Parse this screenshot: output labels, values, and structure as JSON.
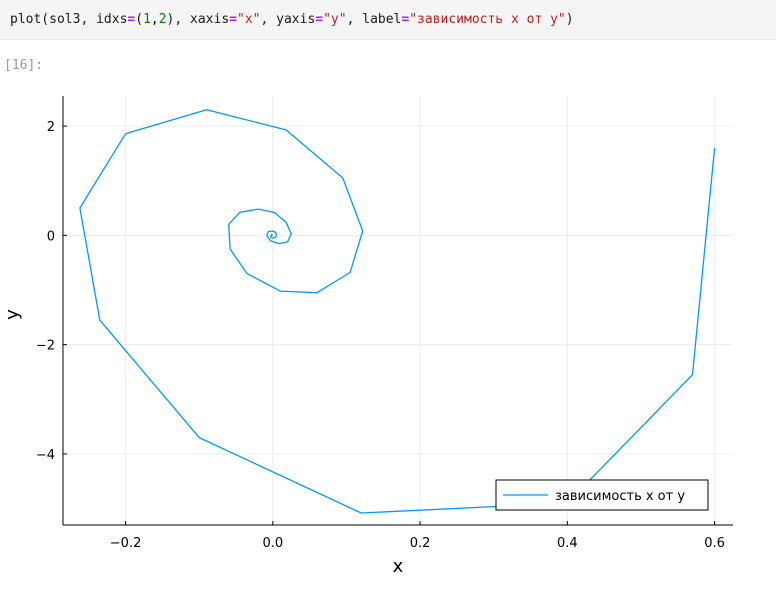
{
  "cell": {
    "code_tokens": [
      {
        "t": "plot(sol3, idxs",
        "c": ""
      },
      {
        "t": "=",
        "c": "tok-op"
      },
      {
        "t": "(",
        "c": ""
      },
      {
        "t": "1",
        "c": "tok-num"
      },
      {
        "t": ",",
        "c": ""
      },
      {
        "t": "2",
        "c": "tok-num"
      },
      {
        "t": "), xaxis",
        "c": ""
      },
      {
        "t": "=",
        "c": "tok-op"
      },
      {
        "t": "\"x\"",
        "c": "tok-str"
      },
      {
        "t": ", yaxis",
        "c": ""
      },
      {
        "t": "=",
        "c": "tok-op"
      },
      {
        "t": "\"y\"",
        "c": "tok-str"
      },
      {
        "t": ", label",
        "c": ""
      },
      {
        "t": "=",
        "c": "tok-op"
      },
      {
        "t": "\"зависимость x от y\"",
        "c": "tok-str"
      },
      {
        "t": ")",
        "c": ""
      }
    ],
    "output_prompt": "[16]:"
  },
  "chart_data": {
    "type": "line",
    "title": "",
    "xlabel": "x",
    "ylabel": "y",
    "xlim": [
      -0.285,
      0.625
    ],
    "ylim": [
      -5.3,
      2.55
    ],
    "xticks": [
      -0.2,
      0.0,
      0.2,
      0.4,
      0.6
    ],
    "xtick_labels": [
      "−0.2",
      "0.0",
      "0.2",
      "0.4",
      "0.6"
    ],
    "yticks": [
      2,
      0,
      -2,
      -4
    ],
    "ytick_labels": [
      "2",
      "0",
      "−2",
      "−4"
    ],
    "grid": true,
    "legend_position": "bottom-right",
    "line_color": "#009af9",
    "series": [
      {
        "name": "зависимость x от y",
        "x": [
          0.6,
          0.57,
          0.4,
          0.12,
          -0.1,
          -0.235,
          -0.262,
          -0.2,
          -0.09,
          0.018,
          0.095,
          0.122,
          0.105,
          0.06,
          0.01,
          -0.035,
          -0.058,
          -0.06,
          -0.045,
          -0.02,
          0.002,
          0.018,
          0.025,
          0.02,
          0.008,
          -0.003,
          -0.008,
          -0.006,
          0.0,
          0.004,
          0.005,
          0.003,
          -0.001,
          -0.003,
          -0.002,
          0.0
        ],
        "y": [
          1.6,
          -2.55,
          -4.9,
          -5.08,
          -3.7,
          -1.55,
          0.5,
          1.86,
          2.3,
          1.93,
          1.05,
          0.08,
          -0.68,
          -1.05,
          -1.02,
          -0.7,
          -0.25,
          0.2,
          0.42,
          0.48,
          0.42,
          0.24,
          0.03,
          -0.12,
          -0.15,
          -0.1,
          0.0,
          0.07,
          0.08,
          0.05,
          0.0,
          -0.04,
          -0.05,
          -0.02,
          0.02,
          0.0
        ]
      }
    ]
  }
}
